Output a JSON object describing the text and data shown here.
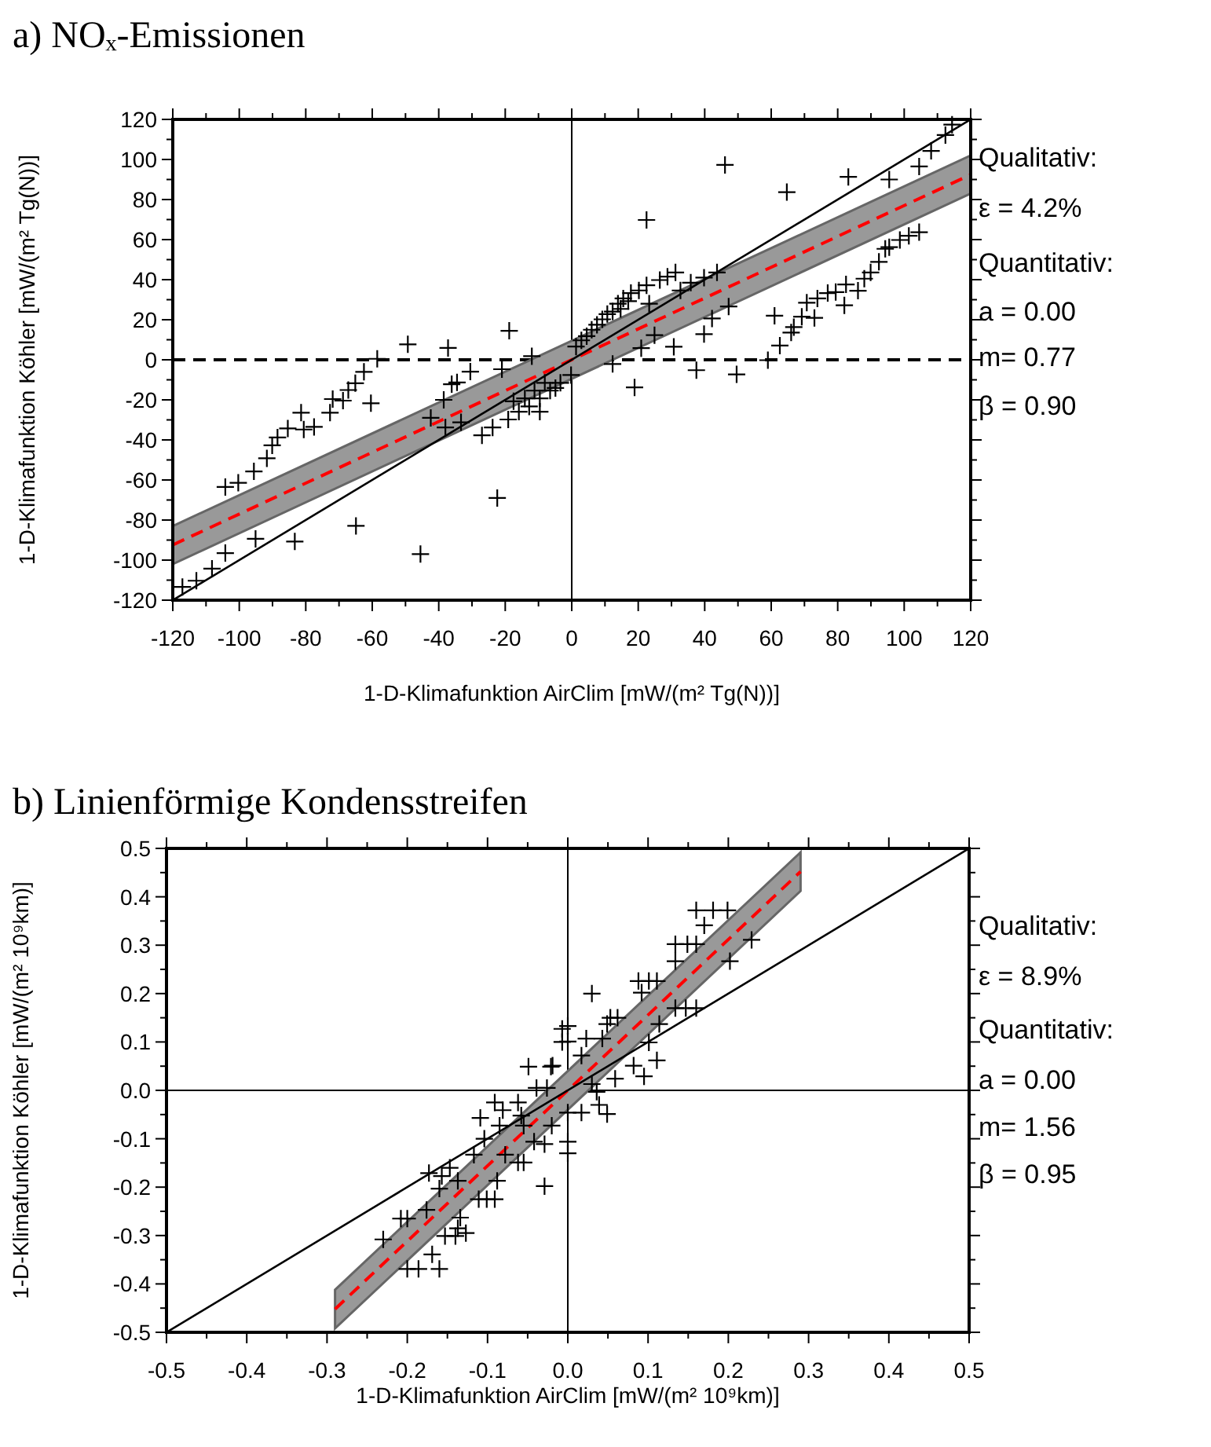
{
  "chart_data": [
    {
      "type": "scatter",
      "title": "a) NOₓ-Emissionen",
      "xlabel": "1-D-Klimafunktion AirClim [mW/(m² Tg(N))]",
      "ylabel": "1-D-Klimafunktion Köhler [mW/(m² Tg(N))]",
      "xlim": [
        -120,
        120
      ],
      "ylim": [
        -120,
        120
      ],
      "xticks": [
        -120,
        {
          "value": -110,
          "label": null
        },
        -100,
        {
          "value": -90,
          "label": null
        },
        -80,
        {
          "value": -70,
          "label": null
        },
        -60,
        {
          "value": -50,
          "label": null
        },
        -40,
        {
          "value": -30,
          "label": null
        },
        -20,
        {
          "value": -10,
          "label": null
        },
        0,
        {
          "value": 10,
          "label": null
        },
        20,
        {
          "value": 30,
          "label": null
        },
        40,
        {
          "value": 50,
          "label": null
        },
        60,
        {
          "value": 70,
          "label": null
        },
        80,
        {
          "value": 90,
          "label": null
        },
        100,
        {
          "value": 110,
          "label": null
        },
        120
      ],
      "yticks": [
        -120,
        {
          "value": -110,
          "label": null
        },
        -100,
        {
          "value": -90,
          "label": null
        },
        -80,
        {
          "value": -70,
          "label": null
        },
        -60,
        {
          "value": -50,
          "label": null
        },
        -40,
        {
          "value": -30,
          "label": null
        },
        -20,
        {
          "value": -10,
          "label": null
        },
        0,
        {
          "value": 10,
          "label": null
        },
        20,
        {
          "value": 30,
          "label": null
        },
        40,
        {
          "value": 50,
          "label": null
        },
        60,
        {
          "value": 70,
          "label": null
        },
        80,
        {
          "value": 90,
          "label": null
        },
        100,
        {
          "value": 110,
          "label": null
        },
        120
      ],
      "grid": false,
      "ref_lines": [
        {
          "axis": "y",
          "value": 0,
          "color": "#000000",
          "line_style": "dashed"
        },
        {
          "axis": "x",
          "value": 0,
          "color": "#000000",
          "line_style": "solid"
        }
      ],
      "annotations": [
        "Qualitativ:",
        "ε  = 4.2%",
        "Quantitativ:",
        "a = 0.00",
        "m= 0.77",
        "β = 0.90"
      ],
      "series": [
        {
          "type": "line",
          "color": "#ff0000",
          "line_style": "dashed",
          "x": [
            -120,
            120
          ],
          "values": [
            -92.4,
            92.4
          ],
          "lower": [
            -102,
            83
          ],
          "upper": [
            -83,
            102
          ]
        },
        {
          "type": "line",
          "color": "#000000",
          "line_style": "solid",
          "x": [
            -120,
            120
          ],
          "values": [
            -120,
            120
          ]
        },
        {
          "marker": "cross",
          "color": "#000000",
          "x": [
            -104.2,
            -100.3,
            -95.6,
            -91.7,
            -90.1,
            -88.5,
            -85.4,
            -81.4,
            -80.6,
            -77.5,
            -72.7,
            -71.9,
            -68.8,
            -67.2,
            -65.1,
            -62.5,
            -58.5,
            -60.4,
            -49.3,
            -37.2,
            -18.8,
            -30.5,
            -21,
            -12,
            -117.1,
            -112.9,
            -108.2,
            -104.2,
            -95.1,
            -83.3,
            -64.9,
            -45.5,
            -22.4,
            -42.4,
            -38.5,
            -36.1,
            -34.5,
            -38,
            -33.3,
            -27,
            -23.8,
            -19.1,
            -15.9,
            -12.8,
            -9.6,
            -6.5,
            -3.4,
            -0.2,
            -11.2,
            -8.1,
            -17.5,
            -14.1,
            -9.6,
            -4.9,
            46.1,
            22.5,
            64.7,
            83.2,
            95.5,
            104.5,
            108.1,
            112.4,
            114.4,
            104.5,
            101.4,
            98.7,
            95.5,
            94.3,
            92.4,
            89.9,
            88,
            86.1,
            82.5,
            82,
            79.4,
            77,
            73.9,
            70.7,
            69.2,
            66.8,
            66,
            62.6,
            59,
            61,
            73,
            37.5,
            49.6,
            18.9,
            12.3,
            20.9,
            30.7,
            39.8,
            42.2,
            47.2,
            39.8,
            43.7,
            31.2,
            28.8,
            26.5,
            22.5,
            20.2,
            17.8,
            15.5,
            13.9,
            12.3,
            10.7,
            9.2,
            7.6,
            6,
            4.5,
            2.9,
            1.3,
            14.7,
            17,
            23.3,
            24.9,
            32.7,
            35.8
          ],
          "values": [
            -63.5,
            -61.4,
            -55.7,
            -49.2,
            -42.7,
            -38.8,
            -34.3,
            -26.4,
            -34.8,
            -33.5,
            -26.4,
            -19.6,
            -20.4,
            -15.1,
            -11.7,
            -6,
            0.5,
            -21.7,
            7.7,
            5.9,
            14.5,
            -5.9,
            -4.7,
            1.8,
            -113.4,
            -110.3,
            -104.3,
            -96.5,
            -89.4,
            -90.7,
            -82.9,
            -97,
            -69,
            -29,
            -20,
            -12.2,
            -11.3,
            -33.8,
            -31.2,
            -37.7,
            -33.8,
            -29.8,
            -25.9,
            -23.3,
            -19.3,
            -15.4,
            -11.5,
            -7.6,
            -15.4,
            -11.5,
            -20.7,
            -19.3,
            -25.9,
            -14.1,
            97.3,
            69.8,
            83.7,
            91.3,
            90,
            96.5,
            104.3,
            112.2,
            117.4,
            63.7,
            61.9,
            59.8,
            56.2,
            55.4,
            48.9,
            43.6,
            40.5,
            34.5,
            37.6,
            27.2,
            33.8,
            33.3,
            30.6,
            28.5,
            21.5,
            16.3,
            13.6,
            7.1,
            -0.2,
            22,
            20.9,
            -5.2,
            -7.3,
            -13.8,
            -2.1,
            5.8,
            6.5,
            12.8,
            20.6,
            26.6,
            41,
            43.6,
            43.6,
            41.5,
            39.8,
            37.2,
            34.6,
            33.3,
            30.6,
            28,
            24.1,
            22.8,
            20.2,
            17.5,
            15,
            11.8,
            9.7,
            6.6,
            25.4,
            29.3,
            28,
            12.3,
            34.6,
            38.5
          ]
        }
      ]
    },
    {
      "type": "scatter",
      "title": "b) Linienförmige Kondensstreifen",
      "xlabel": "1-D-Klimafunktion AirClim [mW/(m² 10⁹km)]",
      "ylabel": "1-D-Klimafunktion Köhler [mW/(m² 10⁹km)]",
      "xlim": [
        -0.5,
        0.5
      ],
      "ylim": [
        -0.5,
        0.5
      ],
      "xticks": [
        -0.5,
        {
          "value": -0.45,
          "label": null
        },
        -0.4,
        {
          "value": -0.35,
          "label": null
        },
        -0.3,
        {
          "value": -0.25,
          "label": null
        },
        -0.2,
        {
          "value": -0.15,
          "label": null
        },
        -0.1,
        {
          "value": -0.05,
          "label": null
        },
        {
          "value": 0,
          "label": "0.0"
        },
        {
          "value": 0.05,
          "label": null
        },
        0.1,
        {
          "value": 0.15,
          "label": null
        },
        0.2,
        {
          "value": 0.25,
          "label": null
        },
        0.3,
        {
          "value": 0.35,
          "label": null
        },
        0.4,
        {
          "value": 0.45,
          "label": null
        },
        0.5
      ],
      "yticks": [
        -0.5,
        {
          "value": -0.45,
          "label": null
        },
        -0.4,
        {
          "value": -0.35,
          "label": null
        },
        -0.3,
        {
          "value": -0.25,
          "label": null
        },
        -0.2,
        {
          "value": -0.15,
          "label": null
        },
        -0.1,
        {
          "value": -0.05,
          "label": null
        },
        {
          "value": 0,
          "label": "0.0"
        },
        {
          "value": 0.05,
          "label": null
        },
        0.1,
        {
          "value": 0.15,
          "label": null
        },
        0.2,
        {
          "value": 0.25,
          "label": null
        },
        0.3,
        {
          "value": 0.35,
          "label": null
        },
        0.4,
        {
          "value": 0.45,
          "label": null
        },
        0.5
      ],
      "grid": false,
      "ref_lines": [
        {
          "axis": "y",
          "value": 0,
          "color": "#000000",
          "line_style": "solid"
        },
        {
          "axis": "x",
          "value": 0,
          "color": "#000000",
          "line_style": "solid"
        }
      ],
      "annotations": [
        "Qualitativ:",
        "ε  = 8.9%",
        "Quantitativ:",
        "a = 0.00",
        "m= 1.56",
        "β = 0.95"
      ],
      "series": [
        {
          "type": "line",
          "color": "#ff0000",
          "line_style": "dashed",
          "x": [
            -0.29,
            0.29
          ],
          "values": [
            -0.452,
            0.452
          ],
          "lower": [
            -0.492,
            0.412
          ],
          "upper": [
            -0.412,
            0.492
          ]
        },
        {
          "type": "line",
          "color": "#000000",
          "line_style": "solid",
          "x": [
            -0.5,
            0.5
          ],
          "values": [
            -0.5,
            0.5
          ]
        },
        {
          "marker": "cross",
          "color": "#000000",
          "x": [
            -0.23,
            -0.208,
            -0.2,
            -0.2,
            -0.186,
            -0.16,
            -0.169,
            -0.176,
            -0.173,
            -0.157,
            -0.147,
            -0.137,
            -0.16,
            -0.134,
            -0.153,
            -0.14,
            -0.127,
            -0.137,
            -0.117,
            -0.109,
            -0.104,
            -0.091,
            -0.081,
            -0.085,
            -0.111,
            -0.101,
            -0.091,
            -0.088,
            -0.062,
            -0.058,
            -0.055,
            -0.042,
            -0.029,
            -0.049,
            -0.021,
            -0.039,
            -0.026,
            -0.02,
            -0.062,
            -0.055,
            -0.078,
            -0.029,
            -0.007,
            -0.007,
            0.16,
            0.181,
            0.199,
            0.17,
            0.134,
            0.149,
            0.16,
            0.134,
            0.202,
            0.229,
            0.088,
            0.101,
            0.111,
            0.092,
            0.03,
            0.134,
            0.147,
            0.16,
            0.053,
            0.062,
            0.049,
            0.114,
            0.023,
            0.043,
            0.101,
            0.017,
            0.111,
            0.082,
            0.095,
            0.059,
            0,
            0,
            -0.019,
            0.017,
            0.049,
            0.039,
            0,
            0,
            0,
            0.03,
            0.036
          ],
          "values": [
            -0.308,
            -0.265,
            -0.265,
            -0.369,
            -0.369,
            -0.369,
            -0.339,
            -0.247,
            -0.171,
            -0.177,
            -0.16,
            -0.187,
            -0.203,
            -0.263,
            -0.301,
            -0.301,
            -0.295,
            -0.285,
            -0.133,
            -0.057,
            -0.1,
            -0.025,
            -0.041,
            -0.073,
            -0.225,
            -0.225,
            -0.225,
            -0.187,
            -0.025,
            -0.052,
            -0.073,
            -0.106,
            -0.198,
            0.049,
            0.049,
            0.005,
            0.005,
            -0.073,
            -0.149,
            -0.149,
            -0.133,
            -0.111,
            0.127,
            0.1,
            0.372,
            0.372,
            0.372,
            0.341,
            0.302,
            0.302,
            0.302,
            0.267,
            0.267,
            0.311,
            0.226,
            0.226,
            0.226,
            0.202,
            0.2,
            0.17,
            0.17,
            0.17,
            0.15,
            0.15,
            0.137,
            0.137,
            0.107,
            0.107,
            0.099,
            0.072,
            0.062,
            0.051,
            0.029,
            0.024,
            0.133,
            0.101,
            0.051,
            -0.046,
            -0.049,
            -0.03,
            -0.046,
            -0.106,
            -0.13,
            0.013,
            -0.003
          ]
        }
      ]
    }
  ]
}
